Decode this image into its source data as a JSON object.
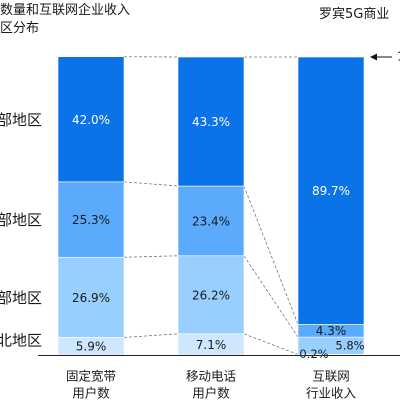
{
  "header": {
    "title_line1": "数量和互联网企业收入",
    "title_line2": "区分布",
    "note": "罗宾5G商业"
  },
  "arrow_label": "1",
  "chart_data": {
    "type": "bar",
    "stacked": true,
    "percent_stack": true,
    "categories": [
      "固定宽带用户数",
      "移动电话用户数",
      "互联网行业收入"
    ],
    "category_labels": [
      [
        "固定宽带",
        "用户数"
      ],
      [
        "移动电话",
        "用户数"
      ],
      [
        "互联网",
        "行业收入"
      ]
    ],
    "series": [
      {
        "name": "北地区",
        "color": "#cfe6ff",
        "values": [
          5.9,
          7.1,
          0.2
        ],
        "labels": [
          "5.9%",
          "7.1%",
          "0.2%"
        ]
      },
      {
        "name": "部地区",
        "color": "#99cfff",
        "values": [
          26.9,
          26.2,
          5.8
        ],
        "labels": [
          "26.9%",
          "26.2%",
          "5.8%"
        ]
      },
      {
        "name": "部地区",
        "color": "#5caafc",
        "values": [
          25.3,
          23.4,
          4.3
        ],
        "labels": [
          "25.3%",
          "23.4%",
          "4.3%"
        ]
      },
      {
        "name": "部地区",
        "color": "#0a73e8",
        "values": [
          42.0,
          43.3,
          89.7
        ],
        "labels": [
          "42.0%",
          "43.3%",
          "89.7%"
        ]
      }
    ],
    "ylim": [
      0,
      100
    ],
    "grid": false,
    "legend": "left-side labels",
    "label_colors": {
      "light": "#1a1a1a",
      "dark": "#ffffff"
    }
  }
}
